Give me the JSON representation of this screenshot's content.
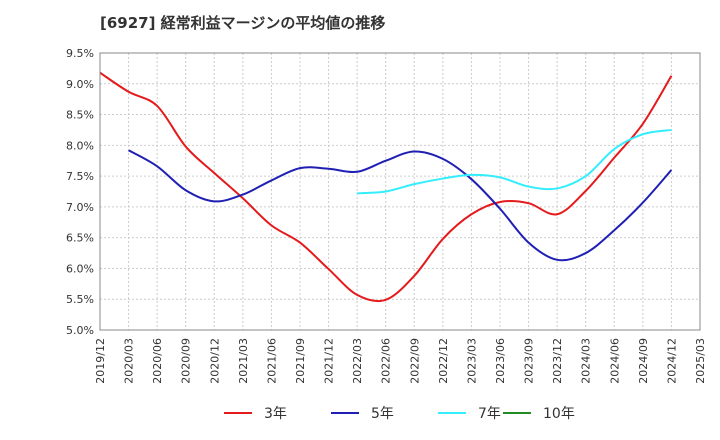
{
  "chart_data": {
    "type": "line",
    "title": "[6927]  経常利益マージンの平均値の推移",
    "xlabel": "",
    "ylabel": "",
    "x": [
      "2019/12",
      "2020/03",
      "2020/06",
      "2020/09",
      "2020/12",
      "2021/03",
      "2021/06",
      "2021/09",
      "2021/12",
      "2022/03",
      "2022/06",
      "2022/09",
      "2022/12",
      "2023/03",
      "2023/06",
      "2023/09",
      "2023/12",
      "2024/03",
      "2024/06",
      "2024/09",
      "2024/12",
      "2025/03"
    ],
    "ylim": [
      5.0,
      9.5
    ],
    "yticks": [
      "5.0%",
      "5.5%",
      "6.0%",
      "6.5%",
      "7.0%",
      "7.5%",
      "8.0%",
      "8.5%",
      "9.0%",
      "9.5%"
    ],
    "grid": true,
    "legend_position": "bottom",
    "series": [
      {
        "name": "3年",
        "color": "#e41a1c",
        "values": [
          9.18,
          8.87,
          8.64,
          7.98,
          7.55,
          7.14,
          6.7,
          6.42,
          5.99,
          5.57,
          5.49,
          5.88,
          6.48,
          6.88,
          7.08,
          7.06,
          6.88,
          7.26,
          7.8,
          8.35,
          9.13,
          null
        ]
      },
      {
        "name": "5年",
        "color": "#1f1fb4",
        "values": [
          null,
          7.92,
          7.66,
          7.27,
          7.09,
          7.2,
          7.43,
          7.63,
          7.62,
          7.57,
          7.75,
          7.9,
          7.78,
          7.45,
          6.97,
          6.42,
          6.14,
          6.25,
          6.62,
          7.07,
          7.6,
          null
        ]
      },
      {
        "name": "7年",
        "color": "#33eeff",
        "values": [
          null,
          null,
          null,
          null,
          null,
          null,
          null,
          null,
          null,
          7.22,
          7.25,
          7.37,
          7.46,
          7.52,
          7.48,
          7.33,
          7.3,
          7.5,
          7.94,
          8.18,
          8.25,
          null
        ]
      },
      {
        "name": "10年",
        "color": "#228b22",
        "values": [
          null,
          null,
          null,
          null,
          null,
          null,
          null,
          null,
          null,
          null,
          null,
          null,
          null,
          null,
          null,
          null,
          null,
          null,
          null,
          null,
          null,
          null
        ]
      }
    ]
  }
}
